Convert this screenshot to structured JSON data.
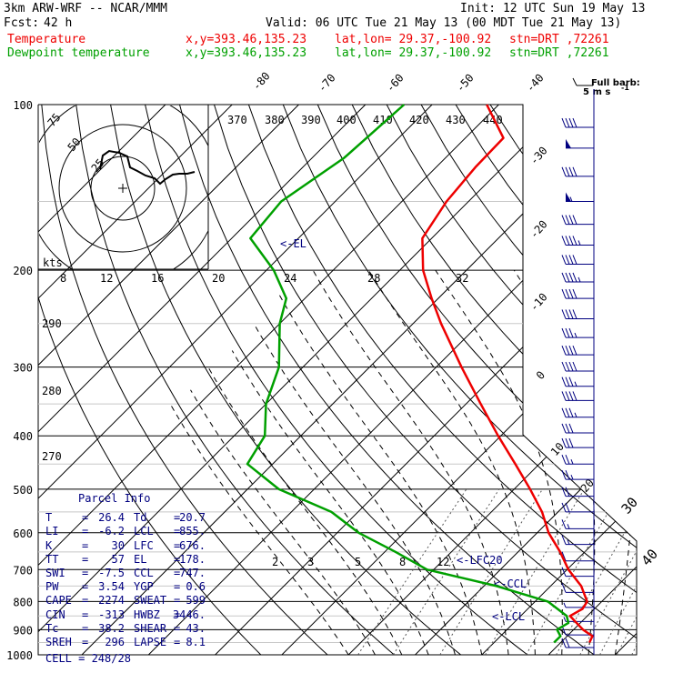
{
  "header": {
    "model": "3km ARW-WRF -- NCAR/MMM",
    "init": "Init: 12 UTC Sun 19 May 13",
    "fcst_label": "Fcst:",
    "fcst_value": "42 h",
    "valid": "Valid: 06 UTC Tue 21 May 13 (00 MDT Tue 21 May 13)",
    "temp_line": {
      "label": "Temperature",
      "xy": "x,y=393.46,135.23",
      "latlon": "lat,lon= 29.37,-100.92",
      "stn": "stn=DRT ,72261"
    },
    "dew_line": {
      "label": "Dewpoint temperature",
      "xy": "x,y=393.46,135.23",
      "latlon": "lat,lon= 29.37,-100.92",
      "stn": "stn=DRT ,72261"
    }
  },
  "barb_legend": {
    "title": "Full barb:",
    "value": "5 m s",
    "exp": "-1"
  },
  "parcel_info": {
    "title": "Parcel Info",
    "rows": [
      {
        "l1": "T",
        "v1": "26.4",
        "l2": "Td",
        "v2": "20.7"
      },
      {
        "l1": "LI",
        "v1": "-6.2",
        "l2": "LCL",
        "v2": "855."
      },
      {
        "l1": "K",
        "v1": "30",
        "l2": "LFC",
        "v2": "676."
      },
      {
        "l1": "TT",
        "v1": "57",
        "l2": "EL",
        "v2": "178."
      },
      {
        "l1": "SWI",
        "v1": "-7.5",
        "l2": "CCL",
        "v2": "747."
      },
      {
        "l1": "PW",
        "v1": "3.54",
        "l2": "YGP",
        "v2": "0.6"
      },
      {
        "l1": "CAPE",
        "v1": "2274",
        "l2": "SWEAT",
        "v2": "599"
      },
      {
        "l1": "CIN",
        "v1": "-313",
        "l2": "HWBZ",
        "v2": "3446."
      },
      {
        "l1": "Tc",
        "v1": "38.2",
        "l2": "SHEAR",
        "v2": "43."
      },
      {
        "l1": "SREH",
        "v1": "296",
        "l2": "LAPSE",
        "v2": "8.1"
      }
    ],
    "cell": "CELL = 248/28"
  },
  "hodograph": {
    "units": "kts",
    "ring_labels": [
      "25",
      "50",
      "75"
    ],
    "trace_color": "#000000"
  },
  "chart_data": {
    "type": "line",
    "skew_t": true,
    "y_axis": "pressure (hPa), log scale",
    "x_axis": "temperature (deg C), skewed 45 degrees",
    "pressure_labels": [
      "100",
      "200",
      "300",
      "400",
      "500",
      "600",
      "700",
      "800",
      "900",
      "1000"
    ],
    "ylim": [
      1000,
      100
    ],
    "isotherm_labels": [
      "-80",
      "-70",
      "-60",
      "-50",
      "-40",
      "-30",
      "-20",
      "-10",
      "0",
      "10",
      "20",
      "30",
      "40"
    ],
    "dry_adiabat_labels": [
      "370",
      "380",
      "390",
      "400",
      "410",
      "420",
      "430",
      "440"
    ],
    "dry_adiabat_labels_left": [
      "290",
      "280",
      "270"
    ],
    "mixing_ratio_labels_top": [
      "8",
      "12",
      "16",
      "20",
      "24",
      "28",
      "32"
    ],
    "mixing_ratio_labels_low": [
      "2",
      "3",
      "5",
      "8",
      "12"
    ],
    "annotations": {
      "el": "<-EL",
      "lfc": "<-LFC20",
      "ccl": "<-CCL",
      "lcl": "<-LCL"
    },
    "series": [
      {
        "name": "Temperature",
        "color": "#ee0000",
        "points": [
          [
            100,
            -71.8
          ],
          [
            115,
            -64.3
          ],
          [
            130,
            -64.1
          ],
          [
            150,
            -63.3
          ],
          [
            175,
            -61.4
          ],
          [
            200,
            -56.5
          ],
          [
            225,
            -51.0
          ],
          [
            250,
            -45.8
          ],
          [
            300,
            -36.2
          ],
          [
            350,
            -27.8
          ],
          [
            400,
            -20.4
          ],
          [
            450,
            -13.6
          ],
          [
            500,
            -7.6
          ],
          [
            550,
            -2.4
          ],
          [
            600,
            1.7
          ],
          [
            650,
            6.3
          ],
          [
            700,
            10.2
          ],
          [
            750,
            14.6
          ],
          [
            800,
            17.8
          ],
          [
            825,
            18.2
          ],
          [
            850,
            17.4
          ],
          [
            900,
            21.4
          ],
          [
            925,
            23.8
          ],
          [
            950,
            24.3
          ]
        ]
      },
      {
        "name": "Dewpoint temperature",
        "color": "#00a000",
        "points": [
          [
            100,
            -84.2
          ],
          [
            125,
            -85.2
          ],
          [
            150,
            -88.1
          ],
          [
            175,
            -87.2
          ],
          [
            200,
            -78.9
          ],
          [
            225,
            -72.8
          ],
          [
            250,
            -70.0
          ],
          [
            300,
            -63.6
          ],
          [
            350,
            -60.0
          ],
          [
            400,
            -55.4
          ],
          [
            450,
            -53.8
          ],
          [
            500,
            -45.3
          ],
          [
            550,
            -34.0
          ],
          [
            600,
            -26.8
          ],
          [
            650,
            -18.4
          ],
          [
            700,
            -11.0
          ],
          [
            750,
            1.9
          ],
          [
            800,
            11.9
          ],
          [
            850,
            16.9
          ],
          [
            875,
            18.2
          ],
          [
            900,
            17.5
          ],
          [
            925,
            19.0
          ],
          [
            950,
            19.0
          ]
        ]
      }
    ],
    "wind_barbs": [
      {
        "p": 110,
        "kt": 40
      },
      {
        "p": 120,
        "kt": 50
      },
      {
        "p": 135,
        "kt": 40
      },
      {
        "p": 150,
        "kt": 55
      },
      {
        "p": 165,
        "kt": 40
      },
      {
        "p": 180,
        "kt": 45
      },
      {
        "p": 195,
        "kt": 40
      },
      {
        "p": 210,
        "kt": 45
      },
      {
        "p": 225,
        "kt": 40
      },
      {
        "p": 245,
        "kt": 40
      },
      {
        "p": 265,
        "kt": 35
      },
      {
        "p": 285,
        "kt": 40
      },
      {
        "p": 305,
        "kt": 40
      },
      {
        "p": 325,
        "kt": 35
      },
      {
        "p": 345,
        "kt": 40
      },
      {
        "p": 370,
        "kt": 35
      },
      {
        "p": 395,
        "kt": 30
      },
      {
        "p": 420,
        "kt": 30
      },
      {
        "p": 450,
        "kt": 25
      },
      {
        "p": 480,
        "kt": 25
      },
      {
        "p": 515,
        "kt": 20
      },
      {
        "p": 550,
        "kt": 20
      },
      {
        "p": 590,
        "kt": 15
      },
      {
        "p": 630,
        "kt": 15
      },
      {
        "p": 675,
        "kt": 10
      },
      {
        "p": 720,
        "kt": 10
      },
      {
        "p": 770,
        "kt": 10
      },
      {
        "p": 820,
        "kt": 5
      },
      {
        "p": 870,
        "kt": 5
      },
      {
        "p": 920,
        "kt": 10
      },
      {
        "p": 970,
        "kt": 20
      }
    ]
  }
}
